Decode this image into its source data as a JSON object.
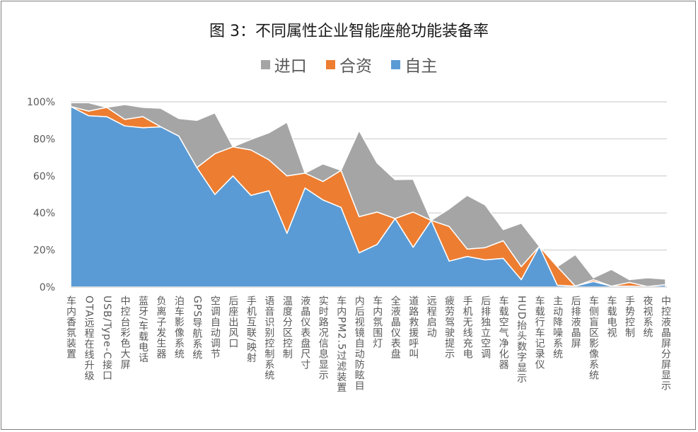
{
  "chart_data": {
    "type": "area",
    "stacked": true,
    "title": "图 3：不同属性企业智能座舱功能装备率",
    "xlabel": "",
    "ylabel": "",
    "ylim": [
      0,
      100
    ],
    "yticks": [
      "0%",
      "20%",
      "40%",
      "60%",
      "80%",
      "100%"
    ],
    "grid": true,
    "legend_position": "top",
    "categories": [
      "车内香氛装置",
      "OTA远程在线升级",
      "USB/Type-C接口",
      "中控台彩色大屏",
      "蓝牙/车载电话",
      "负离子发生器",
      "泊车影像系统",
      "GPS导航系统",
      "空调自动调节",
      "后座出风口",
      "手机互联/映射",
      "语音识别控制系统",
      "温度分区控制",
      "液晶仪表盘尺寸",
      "实时路况信息显示",
      "车内PM2.5过滤装置",
      "内后视镜自动防眩目",
      "车内氛围灯",
      "全液晶仪表盘",
      "道路救援呼叫",
      "远程启动",
      "疲劳驾驶提示",
      "手机无线充电",
      "后排独立空调",
      "车载空气净化器",
      "HUD抬头数字显示",
      "车载行车记录仪",
      "主动降噪系统",
      "后排液晶屏",
      "车侧盲区影像系统",
      "车载电视",
      "手势控制",
      "夜视系统",
      "中控液晶屏分屏显示"
    ],
    "series": [
      {
        "name": "自主",
        "color": "#5B9BD5",
        "values": [
          97.5,
          92.5,
          92,
          87,
          86,
          86.5,
          81.5,
          64.5,
          50,
          60,
          49.5,
          52,
          29,
          53.5,
          47,
          43,
          18.5,
          23,
          37,
          21.5,
          36,
          14,
          16.5,
          14.7,
          15.5,
          4,
          22,
          1,
          0.5,
          3,
          0.5,
          0.5,
          0.3,
          1.3
        ]
      },
      {
        "name": "合资",
        "color": "#ED7D31",
        "values": [
          0,
          2.5,
          5,
          3.5,
          6,
          0,
          0,
          0,
          22,
          15.7,
          24.5,
          16.7,
          31,
          8,
          10,
          20,
          19.5,
          17.5,
          0,
          19,
          0,
          18.7,
          4,
          6.6,
          9.5,
          7,
          0,
          10,
          0,
          1,
          0,
          2,
          0,
          0
        ]
      },
      {
        "name": "进口",
        "color": "#A5A5A5",
        "values": [
          2,
          4.5,
          0,
          8,
          5,
          10,
          9.5,
          25.5,
          22,
          0,
          5.7,
          14.6,
          29,
          0,
          9.5,
          0,
          46.5,
          26.5,
          21,
          17.7,
          0,
          9.5,
          29,
          23,
          6,
          23.5,
          0,
          0,
          17,
          1,
          9,
          1.5,
          4.7,
          3
        ]
      }
    ]
  }
}
